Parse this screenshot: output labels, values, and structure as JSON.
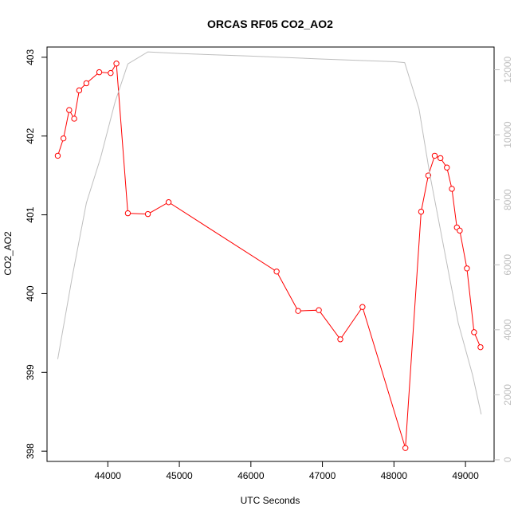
{
  "chart_data": {
    "type": "line",
    "title": "ORCAS RF05 CO2_AO2",
    "xlabel": "UTC Seconds",
    "ylabel": "CO2_AO2",
    "y2label": "",
    "xlim": [
      43150,
      49400
    ],
    "ylim": [
      397.87,
      403.13
    ],
    "y2lim": [
      -50,
      12700
    ],
    "x_ticks": [
      44000,
      45000,
      46000,
      47000,
      48000,
      49000
    ],
    "y_ticks": [
      398,
      399,
      400,
      401,
      402,
      403
    ],
    "y2_ticks": [
      0,
      2000,
      4000,
      6000,
      8000,
      10000,
      12000
    ],
    "grid": false,
    "series": [
      {
        "name": "",
        "axis": "left",
        "color": "#ff0000",
        "markers": "open-circle",
        "x": [
          43300,
          43380,
          43460,
          43530,
          43600,
          43700,
          43880,
          44040,
          44120,
          44280,
          44560,
          44850,
          46360,
          46660,
          46950,
          47250,
          47560,
          48160,
          48380,
          48480,
          48570,
          48650,
          48740,
          48810,
          48880,
          48920,
          49020,
          49120,
          49210
        ],
        "values": [
          401.75,
          401.97,
          402.33,
          402.22,
          402.58,
          402.67,
          402.81,
          402.8,
          402.92,
          401.02,
          401.01,
          401.16,
          400.28,
          399.78,
          399.79,
          399.42,
          399.83,
          398.04,
          401.04,
          401.5,
          401.75,
          401.72,
          401.6,
          401.33,
          400.84,
          400.8,
          400.32,
          399.51,
          399.32
        ]
      },
      {
        "name": "",
        "axis": "right",
        "color": "#bebebe",
        "markers": "none",
        "x": [
          43300,
          43500,
          43700,
          43900,
          44100,
          44280,
          44560,
          45000,
          46000,
          47000,
          48000,
          48150,
          48350,
          48500,
          48700,
          48900,
          49100,
          49220
        ],
        "values": [
          3100,
          5600,
          7900,
          9300,
          11000,
          12180,
          12550,
          12500,
          12420,
          12330,
          12250,
          12220,
          10800,
          8800,
          6500,
          4200,
          2600,
          1400
        ]
      }
    ]
  }
}
